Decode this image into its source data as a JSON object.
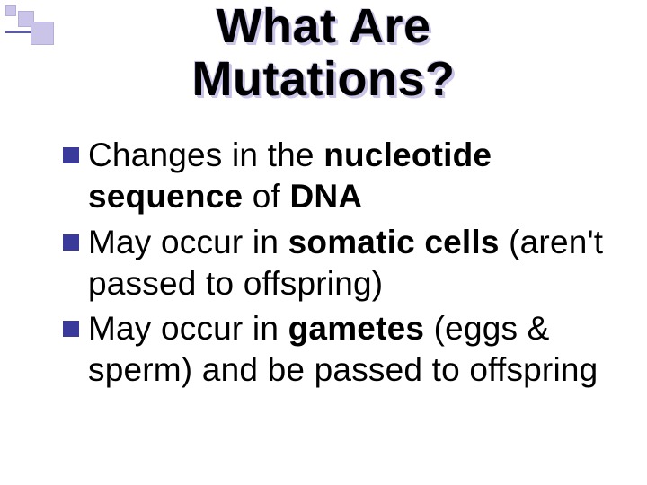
{
  "title_line1": "What Are",
  "title_line2": "Mutations?",
  "bullets": [
    {
      "prefix": "Changes in the ",
      "bold1": "nucleotide sequence",
      "mid": " of ",
      "bold2": "DNA",
      "suffix": ""
    },
    {
      "prefix": "May occur in ",
      "bold1": "somatic cells",
      "mid": " (aren't passed to offspring)",
      "bold2": "",
      "suffix": ""
    },
    {
      "prefix": "May occur in ",
      "bold1": "gametes",
      "mid": " (eggs & sperm) and be passed to offspring",
      "bold2": "",
      "suffix": ""
    }
  ],
  "colors": {
    "accent_light": "#c9c4e8",
    "accent_dark": "#3a3a9a",
    "text": "#000000",
    "bg": "#ffffff"
  },
  "fonts": {
    "title_size_pt": 40,
    "body_size_pt": 28,
    "family": "Comic Sans MS"
  }
}
